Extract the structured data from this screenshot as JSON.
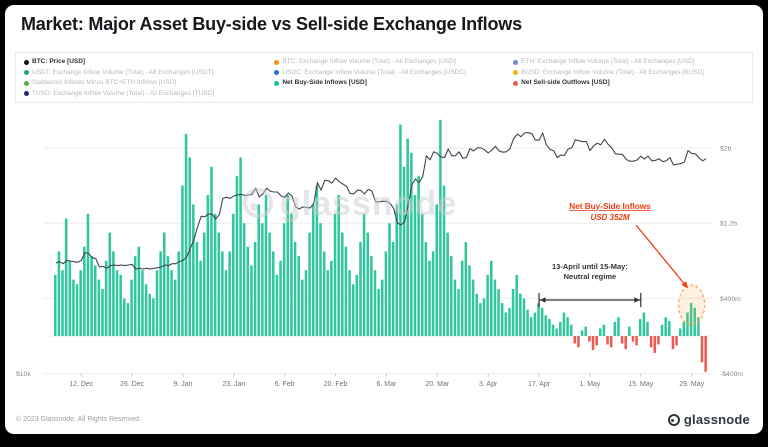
{
  "header": {
    "title": "Market: Major Asset Buy-side vs Sell-side Exchange Inflows"
  },
  "legend": {
    "items": [
      {
        "label": "BTC: Price [USD]",
        "color": "#111111",
        "active": true
      },
      {
        "label": "BTC: Exchange Inflow Volume (Total) - All Exchanges [USD]",
        "color": "#f7931a",
        "active": false
      },
      {
        "label": "ETH: Exchange Inflow Volume (Total) - All Exchanges [USD]",
        "color": "#7986cb",
        "active": false
      },
      {
        "label": "USDT: Exchange Inflow Volume (Total) - All Exchanges [USDT]",
        "color": "#26a17b",
        "active": false
      },
      {
        "label": "USDC: Exchange Inflow Volume (Total) - All Exchanges [USDC]",
        "color": "#2775ca",
        "active": false
      },
      {
        "label": "BUSD: Exchange Inflow Volume (Total) - All Exchanges [BUSD]",
        "color": "#f0b90b",
        "active": false
      },
      {
        "label": "Stablecoin Inflows Minus BTC+ETH Inflows [USD]",
        "color": "#4caf50",
        "active": false
      },
      {
        "label": "Net Buy-Side Inflows [USD]",
        "color": "#17bf95",
        "active": true
      },
      {
        "label": "Net Sell-side Outflows [USD]",
        "color": "#ee5a52",
        "active": true
      },
      {
        "label": "TUSD: Exchange Inflow Volume (Total) - All Exchanges [TUSD]",
        "color": "#1e2a78",
        "active": false
      }
    ]
  },
  "chart_data": {
    "type": "bar",
    "title": "Market: Major Asset Buy-side vs Sell-side Exchange Inflows",
    "start_date": "2022-12-05",
    "x_tick_labels": [
      "12. Dec",
      "26. Dec",
      "9. Jan",
      "23. Jan",
      "6. Feb",
      "20. Feb",
      "6. Mar",
      "20. Mar",
      "3. Apr",
      "17. Apr",
      "1. May",
      "15. May",
      "29. May"
    ],
    "x_tick_indices": [
      7,
      21,
      35,
      49,
      63,
      77,
      91,
      105,
      119,
      133,
      147,
      161,
      175
    ],
    "right_axis": {
      "labels": [
        "$2b",
        "$1.2b",
        "$400m",
        "-$400m"
      ],
      "values_musd": [
        2000,
        1200,
        400,
        -400
      ],
      "ylim_musd": [
        -500,
        2600
      ]
    },
    "left_axis": {
      "label": "$10k",
      "scale": "log"
    },
    "watermark": "glassnode",
    "series": [
      {
        "name": "Net Buy-Side Inflows / Net Sell-side Outflows",
        "type": "bar",
        "pos_color": "#2fc79e",
        "neg_color": "#ee5a52",
        "unit": "USD millions",
        "values_musd": [
          650,
          900,
          700,
          1250,
          800,
          600,
          550,
          700,
          950,
          1300,
          850,
          750,
          600,
          500,
          800,
          1100,
          900,
          700,
          650,
          400,
          350,
          600,
          850,
          950,
          700,
          550,
          450,
          400,
          700,
          900,
          1100,
          850,
          700,
          600,
          900,
          1600,
          2150,
          1900,
          1400,
          1000,
          800,
          1100,
          1500,
          1800,
          1300,
          1100,
          900,
          700,
          900,
          1300,
          1700,
          1900,
          1200,
          950,
          750,
          1000,
          1400,
          1200,
          1500,
          1100,
          900,
          650,
          800,
          1200,
          1500,
          1300,
          1000,
          850,
          600,
          700,
          1100,
          1400,
          1600,
          1200,
          900,
          700,
          800,
          1300,
          1500,
          1100,
          950,
          700,
          550,
          650,
          1000,
          1300,
          1100,
          850,
          700,
          500,
          600,
          900,
          1200,
          1000,
          1400,
          2250,
          1800,
          2100,
          1950,
          1500,
          1700,
          1300,
          1000,
          800,
          900,
          1400,
          2300,
          1600,
          1100,
          850,
          600,
          500,
          800,
          1000,
          750,
          600,
          450,
          350,
          400,
          650,
          800,
          600,
          500,
          350,
          250,
          300,
          500,
          650,
          450,
          400,
          280,
          200,
          250,
          350,
          300,
          220,
          180,
          120,
          80,
          150,
          250,
          200,
          120,
          -80,
          -120,
          60,
          100,
          -60,
          -150,
          -100,
          80,
          120,
          -90,
          -120,
          150,
          200,
          -80,
          -140,
          100,
          -60,
          -100,
          180,
          250,
          150,
          -120,
          -180,
          -90,
          120,
          200,
          160,
          -140,
          -100,
          80,
          150,
          250,
          352,
          300,
          200,
          -280,
          -380
        ]
      },
      {
        "name": "BTC: Price",
        "type": "line",
        "color": "#3c4650",
        "unit": "USD",
        "values_usd": [
          17000,
          17100,
          16950,
          17200,
          17150,
          17100,
          17050,
          17200,
          17800,
          17750,
          17400,
          17350,
          16700,
          16750,
          16600,
          16800,
          16850,
          16800,
          16850,
          16800,
          16850,
          16900,
          16550,
          16600,
          16550,
          16600,
          16550,
          16600,
          16650,
          16700,
          16850,
          16800,
          16950,
          16950,
          17100,
          17200,
          17450,
          18150,
          18850,
          19950,
          20950,
          20900,
          21150,
          21150,
          20700,
          21100,
          22700,
          22800,
          22700,
          22950,
          23050,
          23100,
          23000,
          23050,
          23100,
          23750,
          22850,
          23150,
          23750,
          23450,
          23350,
          23350,
          22950,
          22800,
          23250,
          22950,
          21850,
          21650,
          21850,
          21800,
          21750,
          22200,
          24350,
          23550,
          24600,
          24550,
          24300,
          24850,
          24450,
          24200,
          23950,
          23200,
          23150,
          23550,
          23500,
          23150,
          23650,
          23450,
          22350,
          22350,
          22400,
          22400,
          22200,
          21700,
          20350,
          20150,
          20450,
          22050,
          24150,
          24750,
          24350,
          25050,
          27450,
          26950,
          27950,
          27750,
          27300,
          27250,
          28300,
          27450,
          27450,
          27950,
          27150,
          27250,
          28350,
          28050,
          28450,
          28450,
          28200,
          27800,
          28150,
          28650,
          28050,
          27900,
          27950,
          28350,
          29650,
          30250,
          29900,
          30400,
          30450,
          30300,
          29450,
          29450,
          30400,
          28850,
          28250,
          28100,
          27250,
          27550,
          27500,
          28300,
          28450,
          29500,
          29350,
          29250,
          29250,
          28100,
          28700,
          29050,
          28850,
          29550,
          28900,
          28450,
          27700,
          27650,
          27600,
          27000,
          26800,
          26800,
          26950,
          27400,
          27050,
          27400,
          26850,
          26900,
          27100,
          26750,
          26850,
          27250,
          26350,
          26450,
          26500,
          26700,
          28100,
          27750,
          27700,
          27250,
          26850,
          27100
        ]
      }
    ],
    "annotations": {
      "highlight": {
        "title": "Net Buy-Side Inflows",
        "value": "USD 352M",
        "bar_index": 175,
        "accent_color": "#ee3d12",
        "circle_color": "#ff9d4d"
      },
      "regime": {
        "line1": "13-April until 15-May:",
        "line2": "Neutral regime",
        "start_index": 133,
        "end_index": 161
      }
    }
  },
  "footer": {
    "copyright": "© 2023 Glassnode. All Rights Reserved.",
    "brand": "glassnode"
  }
}
